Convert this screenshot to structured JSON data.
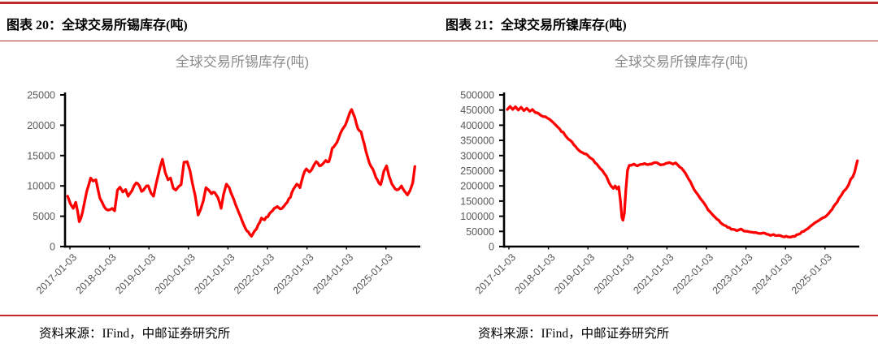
{
  "accent_color": "#C1272D",
  "figures": [
    {
      "header": "图表 20：全球交易所锡库存(吨)",
      "source": "资料来源：IFind，中邮证券研究所"
    },
    {
      "header": "图表 21：全球交易所镍库存(吨)",
      "source": "资料来源：IFind，中邮证券研究所"
    }
  ],
  "chart_data": [
    {
      "type": "line",
      "title": "全球交易所锡库存(吨)",
      "xlabel": "",
      "ylabel": "",
      "legend": "none",
      "grid": false,
      "line_color": "#FF0000",
      "axis_color": "#000000",
      "ylim": [
        0,
        25000
      ],
      "yticks": [
        0,
        5000,
        10000,
        15000,
        20000,
        25000
      ],
      "xticks": [
        "2017-01-03",
        "2018-01-03",
        "2019-01-03",
        "2020-01-03",
        "2021-01-03",
        "2022-01-03",
        "2023-01-03",
        "2024-01-03",
        "2025-01-03"
      ],
      "noise": 200,
      "points": [
        [
          0.005,
          8300
        ],
        [
          0.013,
          7000
        ],
        [
          0.021,
          6300
        ],
        [
          0.028,
          7300
        ],
        [
          0.038,
          4100
        ],
        [
          0.047,
          5600
        ],
        [
          0.059,
          9100
        ],
        [
          0.07,
          11300
        ],
        [
          0.077,
          10800
        ],
        [
          0.085,
          11000
        ],
        [
          0.096,
          8000
        ],
        [
          0.108,
          6600
        ],
        [
          0.119,
          6000
        ],
        [
          0.131,
          6300
        ],
        [
          0.138,
          5900
        ],
        [
          0.146,
          9300
        ],
        [
          0.153,
          9800
        ],
        [
          0.161,
          9000
        ],
        [
          0.169,
          9400
        ],
        [
          0.176,
          8300
        ],
        [
          0.187,
          9200
        ],
        [
          0.199,
          10500
        ],
        [
          0.208,
          10000
        ],
        [
          0.214,
          9100
        ],
        [
          0.223,
          9600
        ],
        [
          0.233,
          10000
        ],
        [
          0.241,
          8800
        ],
        [
          0.248,
          8300
        ],
        [
          0.26,
          11500
        ],
        [
          0.267,
          13200
        ],
        [
          0.273,
          14400
        ],
        [
          0.281,
          12200
        ],
        [
          0.289,
          11000
        ],
        [
          0.296,
          11300
        ],
        [
          0.304,
          9600
        ],
        [
          0.311,
          9300
        ],
        [
          0.319,
          9900
        ],
        [
          0.326,
          10200
        ],
        [
          0.334,
          13900
        ],
        [
          0.343,
          14000
        ],
        [
          0.351,
          12500
        ],
        [
          0.358,
          10400
        ],
        [
          0.366,
          8300
        ],
        [
          0.374,
          5200
        ],
        [
          0.381,
          6100
        ],
        [
          0.389,
          7600
        ],
        [
          0.396,
          9700
        ],
        [
          0.404,
          9300
        ],
        [
          0.412,
          8700
        ],
        [
          0.421,
          8900
        ],
        [
          0.43,
          8100
        ],
        [
          0.439,
          6300
        ],
        [
          0.446,
          8600
        ],
        [
          0.454,
          10300
        ],
        [
          0.462,
          9700
        ],
        [
          0.471,
          8300
        ],
        [
          0.48,
          6900
        ],
        [
          0.489,
          5600
        ],
        [
          0.498,
          4300
        ],
        [
          0.507,
          3100
        ],
        [
          0.516,
          2400
        ],
        [
          0.525,
          1700
        ],
        [
          0.534,
          2600
        ],
        [
          0.544,
          3600
        ],
        [
          0.553,
          4700
        ],
        [
          0.562,
          4400
        ],
        [
          0.571,
          4900
        ],
        [
          0.58,
          5700
        ],
        [
          0.589,
          6300
        ],
        [
          0.598,
          6600
        ],
        [
          0.606,
          6200
        ],
        [
          0.616,
          6600
        ],
        [
          0.626,
          7300
        ],
        [
          0.635,
          8100
        ],
        [
          0.644,
          9500
        ],
        [
          0.653,
          10300
        ],
        [
          0.662,
          9700
        ],
        [
          0.671,
          11700
        ],
        [
          0.68,
          12800
        ],
        [
          0.689,
          12300
        ],
        [
          0.698,
          13000
        ],
        [
          0.708,
          14000
        ],
        [
          0.717,
          13300
        ],
        [
          0.726,
          13600
        ],
        [
          0.735,
          14200
        ],
        [
          0.744,
          14000
        ],
        [
          0.753,
          16200
        ],
        [
          0.762,
          16800
        ],
        [
          0.771,
          17800
        ],
        [
          0.781,
          19200
        ],
        [
          0.79,
          20000
        ],
        [
          0.799,
          21400
        ],
        [
          0.808,
          22600
        ],
        [
          0.817,
          21300
        ],
        [
          0.826,
          19400
        ],
        [
          0.835,
          18900
        ],
        [
          0.844,
          16900
        ],
        [
          0.853,
          14800
        ],
        [
          0.863,
          13200
        ],
        [
          0.872,
          12200
        ],
        [
          0.881,
          11000
        ],
        [
          0.89,
          10200
        ],
        [
          0.899,
          12400
        ],
        [
          0.907,
          13300
        ],
        [
          0.914,
          11600
        ],
        [
          0.922,
          10300
        ],
        [
          0.931,
          9500
        ],
        [
          0.94,
          9400
        ],
        [
          0.949,
          10000
        ],
        [
          0.958,
          9100
        ],
        [
          0.966,
          8500
        ],
        [
          0.973,
          9200
        ],
        [
          0.981,
          10500
        ],
        [
          0.987,
          13200
        ]
      ]
    },
    {
      "type": "line",
      "title": "全球交易所镍库存(吨)",
      "xlabel": "",
      "ylabel": "",
      "legend": "none",
      "grid": false,
      "line_color": "#FF0000",
      "axis_color": "#000000",
      "ylim": [
        0,
        500000
      ],
      "yticks": [
        0,
        50000,
        100000,
        150000,
        200000,
        250000,
        300000,
        350000,
        400000,
        450000,
        500000
      ],
      "xticks": [
        "2017-01-03",
        "2018-01-03",
        "2019-01-03",
        "2020-01-03",
        "2021-01-03",
        "2022-01-03",
        "2023-01-03",
        "2024-01-03",
        "2025-01-03"
      ],
      "noise": 2600,
      "points": [
        [
          0.007,
          452000
        ],
        [
          0.015,
          462000
        ],
        [
          0.022,
          452000
        ],
        [
          0.03,
          461000
        ],
        [
          0.038,
          450000
        ],
        [
          0.046,
          459000
        ],
        [
          0.054,
          448000
        ],
        [
          0.062,
          456000
        ],
        [
          0.07,
          446000
        ],
        [
          0.078,
          452000
        ],
        [
          0.086,
          442000
        ],
        [
          0.1,
          434000
        ],
        [
          0.115,
          428000
        ],
        [
          0.126,
          420000
        ],
        [
          0.14,
          405000
        ],
        [
          0.155,
          388000
        ],
        [
          0.17,
          368000
        ],
        [
          0.185,
          350000
        ],
        [
          0.2,
          330000
        ],
        [
          0.215,
          312000
        ],
        [
          0.23,
          305000
        ],
        [
          0.245,
          290000
        ],
        [
          0.26,
          272000
        ],
        [
          0.275,
          252000
        ],
        [
          0.287,
          232000
        ],
        [
          0.295,
          210000
        ],
        [
          0.3,
          200000
        ],
        [
          0.307,
          192000
        ],
        [
          0.312,
          200000
        ],
        [
          0.317,
          190000
        ],
        [
          0.322,
          197000
        ],
        [
          0.327,
          150000
        ],
        [
          0.331,
          95000
        ],
        [
          0.334,
          87000
        ],
        [
          0.338,
          110000
        ],
        [
          0.342,
          185000
        ],
        [
          0.347,
          252000
        ],
        [
          0.352,
          268000
        ],
        [
          0.357,
          268000
        ],
        [
          0.365,
          272000
        ],
        [
          0.375,
          266000
        ],
        [
          0.385,
          271000
        ],
        [
          0.395,
          274000
        ],
        [
          0.405,
          270000
        ],
        [
          0.415,
          272000
        ],
        [
          0.425,
          277000
        ],
        [
          0.435,
          273000
        ],
        [
          0.445,
          270000
        ],
        [
          0.455,
          274000
        ],
        [
          0.465,
          277000
        ],
        [
          0.475,
          272000
        ],
        [
          0.483,
          276000
        ],
        [
          0.49,
          268000
        ],
        [
          0.5,
          258000
        ],
        [
          0.51,
          243000
        ],
        [
          0.52,
          222000
        ],
        [
          0.53,
          200000
        ],
        [
          0.54,
          180000
        ],
        [
          0.552,
          160000
        ],
        [
          0.565,
          140000
        ],
        [
          0.574,
          122000
        ],
        [
          0.585,
          108000
        ],
        [
          0.6,
          90000
        ],
        [
          0.615,
          74000
        ],
        [
          0.63,
          63000
        ],
        [
          0.645,
          57000
        ],
        [
          0.66,
          54000
        ],
        [
          0.668,
          58000
        ],
        [
          0.676,
          51000
        ],
        [
          0.686,
          50000
        ],
        [
          0.7,
          47000
        ],
        [
          0.715,
          44000
        ],
        [
          0.73,
          45000
        ],
        [
          0.74,
          41000
        ],
        [
          0.755,
          38000
        ],
        [
          0.77,
          36000
        ],
        [
          0.785,
          33000
        ],
        [
          0.8,
          32000
        ],
        [
          0.815,
          34000
        ],
        [
          0.83,
          40000
        ],
        [
          0.845,
          50000
        ],
        [
          0.858,
          60000
        ],
        [
          0.87,
          72000
        ],
        [
          0.882,
          82000
        ],
        [
          0.893,
          90000
        ],
        [
          0.905,
          97000
        ],
        [
          0.915,
          108000
        ],
        [
          0.925,
          122000
        ],
        [
          0.935,
          140000
        ],
        [
          0.944,
          157000
        ],
        [
          0.952,
          170000
        ],
        [
          0.958,
          182000
        ],
        [
          0.965,
          190000
        ],
        [
          0.972,
          203000
        ],
        [
          0.978,
          222000
        ],
        [
          0.984,
          230000
        ],
        [
          0.989,
          245000
        ],
        [
          0.993,
          265000
        ],
        [
          0.997,
          283000
        ]
      ]
    }
  ]
}
